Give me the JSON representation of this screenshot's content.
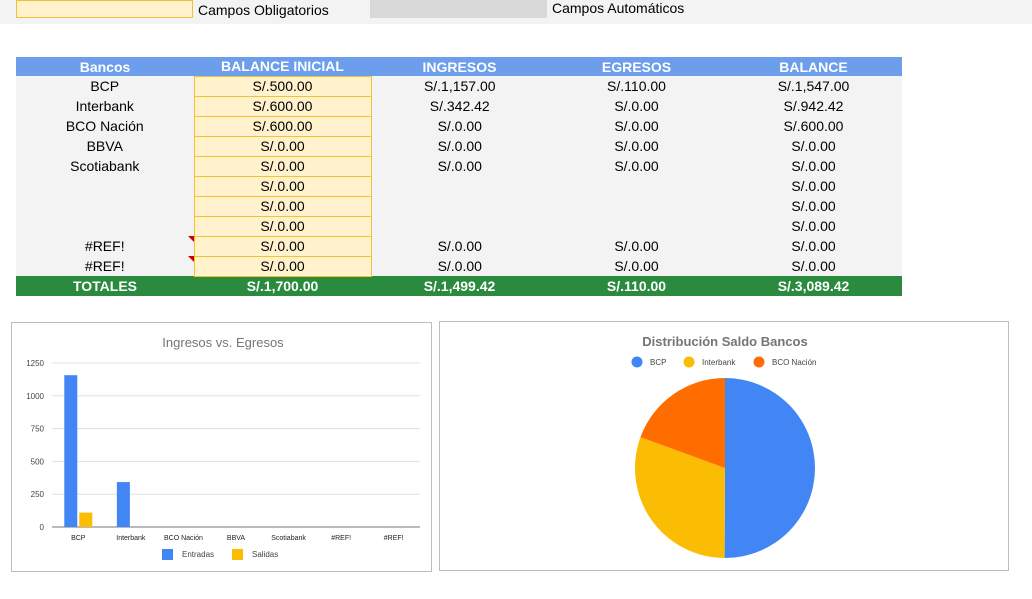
{
  "legend": {
    "required_label": "Campos Obligatorios",
    "auto_label": "Campos Automáticos",
    "colors": {
      "required_fill": "#fff2cc",
      "required_border": "#f1c232",
      "auto_fill": "#d9d9d9"
    }
  },
  "table": {
    "headers": [
      "Bancos",
      "BALANCE INICIAL",
      "INGRESOS",
      "EGRESOS",
      "BALANCE"
    ],
    "rows": [
      {
        "banco": "BCP",
        "inicial": "S/.500.00",
        "ingresos": "S/.1,157.00",
        "egresos": "S/.110.00",
        "balance": "S/.1,547.00",
        "ref": false
      },
      {
        "banco": "Interbank",
        "inicial": "S/.600.00",
        "ingresos": "S/.342.42",
        "egresos": "S/.0.00",
        "balance": "S/.942.42",
        "ref": false
      },
      {
        "banco": "BCO Nación",
        "inicial": "S/.600.00",
        "ingresos": "S/.0.00",
        "egresos": "S/.0.00",
        "balance": "S/.600.00",
        "ref": false
      },
      {
        "banco": "BBVA",
        "inicial": "S/.0.00",
        "ingresos": "S/.0.00",
        "egresos": "S/.0.00",
        "balance": "S/.0.00",
        "ref": false
      },
      {
        "banco": "Scotiabank",
        "inicial": "S/.0.00",
        "ingresos": "S/.0.00",
        "egresos": "S/.0.00",
        "balance": "S/.0.00",
        "ref": false
      },
      {
        "banco": "",
        "inicial": "S/.0.00",
        "ingresos": "",
        "egresos": "",
        "balance": "S/.0.00",
        "ref": false
      },
      {
        "banco": "",
        "inicial": "S/.0.00",
        "ingresos": "",
        "egresos": "",
        "balance": "S/.0.00",
        "ref": false
      },
      {
        "banco": "",
        "inicial": "S/.0.00",
        "ingresos": "",
        "egresos": "",
        "balance": "S/.0.00",
        "ref": false
      },
      {
        "banco": "#REF!",
        "inicial": "S/.0.00",
        "ingresos": "S/.0.00",
        "egresos": "S/.0.00",
        "balance": "S/.0.00",
        "ref": true
      },
      {
        "banco": "#REF!",
        "inicial": "S/.0.00",
        "ingresos": "S/.0.00",
        "egresos": "S/.0.00",
        "balance": "S/.0.00",
        "ref": true
      }
    ],
    "totals": {
      "label": "TOTALES",
      "inicial": "S/.1,700.00",
      "ingresos": "S/.1,499.42",
      "egresos": "S/.110.00",
      "balance": "S/.3,089.42"
    },
    "colors": {
      "header_bg": "#6d9eeb",
      "totals_bg": "#2a8a3e",
      "row_bg": "#f3f3f3"
    }
  },
  "chart_data": [
    {
      "type": "bar",
      "title": "Ingresos vs. Egresos",
      "categories": [
        "BCP",
        "Interbank",
        "BCO Nación",
        "BBVA",
        "Scotiabank",
        "#REF!",
        "#REF!"
      ],
      "series": [
        {
          "name": "Entradas",
          "color": "#4285f4",
          "values": [
            1157,
            342.42,
            0,
            0,
            0,
            0,
            0
          ]
        },
        {
          "name": "Salidas",
          "color": "#fbbc04",
          "values": [
            110,
            0,
            0,
            0,
            0,
            0,
            0
          ]
        }
      ],
      "ylim": [
        0,
        1250
      ],
      "yticks": [
        0,
        250,
        500,
        750,
        1000,
        1250
      ],
      "grid": true,
      "legend": "bottom"
    },
    {
      "type": "pie",
      "title": "Distribución Saldo Bancos",
      "labels": [
        "BCP",
        "Interbank",
        "BCO Nación"
      ],
      "values": [
        1547,
        942.42,
        600
      ],
      "colors": [
        "#4285f4",
        "#fbbc04",
        "#ff6d01"
      ],
      "legend": "top"
    }
  ]
}
